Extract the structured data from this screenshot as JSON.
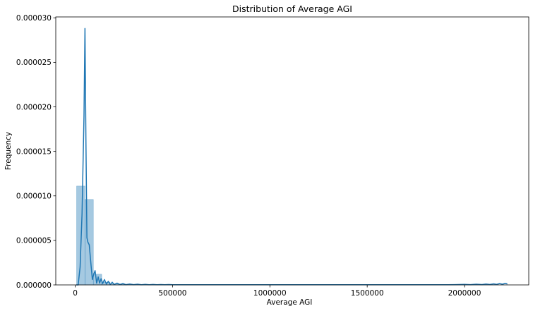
{
  "chart_data": {
    "type": "bar",
    "title": "Distribution of Average AGI",
    "xlabel": "Average AGI",
    "ylabel": "Frequency",
    "xlim": [
      -100000,
      2330000
    ],
    "ylim": [
      0,
      3.01e-05
    ],
    "x_ticks": [
      {
        "value": 0,
        "label": "0"
      },
      {
        "value": 500000,
        "label": "500000"
      },
      {
        "value": 1000000,
        "label": "1000000"
      },
      {
        "value": 1500000,
        "label": "1500000"
      },
      {
        "value": 2000000,
        "label": "2000000"
      }
    ],
    "y_ticks": [
      {
        "value": 0,
        "label": "0.000000"
      },
      {
        "value": 5e-06,
        "label": "0.000005"
      },
      {
        "value": 1e-05,
        "label": "0.000010"
      },
      {
        "value": 1.5e-05,
        "label": "0.000015"
      },
      {
        "value": 2e-05,
        "label": "0.000020"
      },
      {
        "value": 2.5e-05,
        "label": "0.000025"
      },
      {
        "value": 3e-05,
        "label": "0.000030"
      }
    ],
    "histogram": {
      "color": "#1f77b4",
      "opacity": 0.4,
      "bins": [
        {
          "x0": 7000,
          "x1": 50000,
          "value": 1.11e-05
        },
        {
          "x0": 50000,
          "x1": 93000,
          "value": 9.6e-06
        },
        {
          "x0": 93000,
          "x1": 136000,
          "value": 1.2e-06
        },
        {
          "x0": 136000,
          "x1": 179000,
          "value": 3e-07
        },
        {
          "x0": 179000,
          "x1": 222000,
          "value": 1e-07
        },
        {
          "x0": 222000,
          "x1": 265000,
          "value": 5e-08
        }
      ]
    },
    "series": [
      {
        "type": "line",
        "color": "#1f77b4",
        "x": [
          5000,
          15000,
          25000,
          35000,
          45000,
          50000,
          55000,
          60000,
          65000,
          72000,
          80000,
          88000,
          95000,
          102000,
          110000,
          118000,
          125000,
          133000,
          141000,
          150000,
          160000,
          170000,
          180000,
          190000,
          200000,
          215000,
          230000,
          245000,
          260000,
          280000,
          300000,
          320000,
          340000,
          360000,
          380000,
          400000,
          420000,
          440000,
          460000,
          480000,
          500000,
          600000,
          700000,
          800000,
          900000,
          1000000,
          1100000,
          1200000,
          1300000,
          1400000,
          1500000,
          1600000,
          1700000,
          1800000,
          1900000,
          1950000,
          2000000,
          2030000,
          2060000,
          2090000,
          2110000,
          2130000,
          2150000,
          2165000,
          2180000,
          2195000,
          2210000,
          2220000
        ],
        "y": [
          0.0,
          0.0,
          2e-06,
          8e-06,
          1.9e-05,
          2.88e-05,
          1.6e-05,
          5.3e-06,
          4.8e-06,
          4.5e-06,
          2.5e-06,
          6e-07,
          1.2e-06,
          1.6e-06,
          2e-07,
          9e-07,
          2e-07,
          7e-07,
          1.5e-07,
          6e-07,
          1e-07,
          4e-07,
          5e-08,
          3e-07,
          5e-08,
          2e-07,
          5e-08,
          1.5e-07,
          3e-08,
          1e-07,
          3e-08,
          8e-08,
          2e-08,
          6e-08,
          2e-08,
          5e-08,
          2e-08,
          4e-08,
          2e-08,
          4e-08,
          2e-08,
          2e-08,
          2e-08,
          2e-08,
          2e-08,
          2e-08,
          2e-08,
          2e-08,
          2e-08,
          2e-08,
          2e-08,
          2e-08,
          2e-08,
          2e-08,
          2e-08,
          3e-08,
          6e-08,
          3e-08,
          8e-08,
          4e-08,
          1e-07,
          5e-08,
          1.2e-07,
          6e-08,
          1.5e-07,
          8e-08,
          1.8e-07,
          1e-07
        ]
      }
    ],
    "grid": false,
    "legend": "none"
  }
}
